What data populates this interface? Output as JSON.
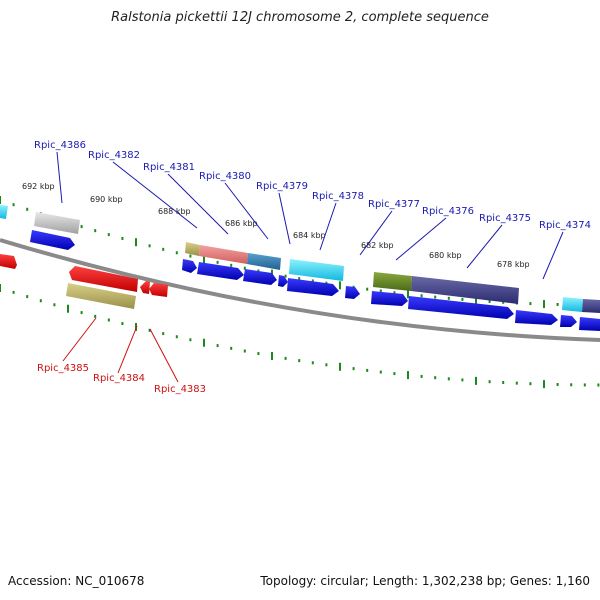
{
  "title": "Ralstonia pickettii 12J chromosome 2, complete sequence",
  "footer": {
    "accession": "Accession: NC_010678",
    "summary": "Topology: circular; Length: 1,302,238 bp; Genes: 1,160"
  },
  "ticks": [
    "692 kbp",
    "690 kbp",
    "688 kbp",
    "686 kbp",
    "684 kbp",
    "682 kbp",
    "680 kbp",
    "678 kbp"
  ],
  "forward_genes": [
    "Rpic_4386",
    "Rpic_4382",
    "Rpic_4381",
    "Rpic_4380",
    "Rpic_4379",
    "Rpic_4378",
    "Rpic_4377",
    "Rpic_4376",
    "Rpic_4375",
    "Rpic_4374"
  ],
  "reverse_genes": [
    "Rpic_4385",
    "Rpic_4384",
    "Rpic_4383"
  ],
  "colors": {
    "cds": "#0a0ad8",
    "reverse_cds": "#e81010",
    "backbone": "#7a7a7a",
    "tick": "#1a8a1a"
  }
}
